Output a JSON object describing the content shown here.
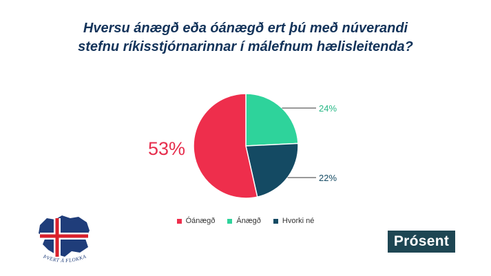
{
  "header": {
    "title_line1": "Hversu ánægð eða óánægð ert þú með núverandi",
    "title_line2": "stefnu ríkisstjórnarinnar í málefnum hælisleitenda?"
  },
  "chart_data": {
    "type": "pie",
    "title": "Hversu ánægð eða óánægð ert þú með núverandi stefnu ríkisstjórnarinnar í málefnum hælisleitenda?",
    "series": [
      {
        "name": "Óánægð",
        "value": 53,
        "label": "53%",
        "color": "#ee2e4c"
      },
      {
        "name": "Ánægð",
        "value": 24,
        "label": "24%",
        "color": "#2ed39b"
      },
      {
        "name": "Hvorki né",
        "value": 22,
        "label": "22%",
        "color": "#144a63"
      }
    ],
    "legend_position": "bottom"
  },
  "logo": {
    "caption": "ÞVERT Á FLOKKA",
    "colors": {
      "blue": "#1f3d7a",
      "red": "#d9202c",
      "white": "#ffffff"
    }
  },
  "brand": {
    "name": "Prósent",
    "color": "#1e4653"
  }
}
